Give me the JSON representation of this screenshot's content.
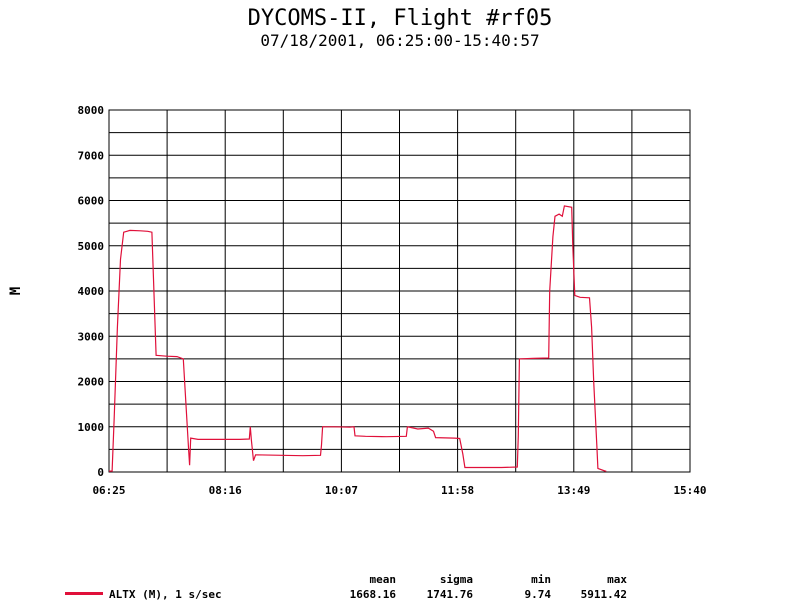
{
  "title": "DYCOMS-II, Flight #rf05",
  "subtitle": "07/18/2001, 06:25:00-15:40:57",
  "colors": {
    "series": "#e0103a",
    "grid": "#000000"
  },
  "chart_data": {
    "type": "line",
    "ylabel": "M",
    "xlabel": "",
    "ylim": [
      0,
      8000
    ],
    "y_ticks": [
      "0",
      "1000",
      "2000",
      "3000",
      "4000",
      "5000",
      "6000",
      "7000",
      "8000"
    ],
    "x_ticks": [
      "06:25",
      "08:16",
      "10:07",
      "11:58",
      "13:49",
      "15:40"
    ],
    "xlim": [
      "06:25",
      "15:40"
    ],
    "grid": true,
    "series": [
      {
        "name": "ALTX (M), 1 s/sec",
        "points": [
          [
            "06:25",
            20
          ],
          [
            "06:28",
            20
          ],
          [
            "06:30",
            1200
          ],
          [
            "06:33",
            3200
          ],
          [
            "06:36",
            4700
          ],
          [
            "06:39",
            5300
          ],
          [
            "06:45",
            5340
          ],
          [
            "06:55",
            5330
          ],
          [
            "07:02",
            5320
          ],
          [
            "07:06",
            5300
          ],
          [
            "07:10",
            2580
          ],
          [
            "07:20",
            2560
          ],
          [
            "07:30",
            2550
          ],
          [
            "07:36",
            2500
          ],
          [
            "07:41",
            500
          ],
          [
            "07:42",
            150
          ],
          [
            "07:43",
            750
          ],
          [
            "07:50",
            720
          ],
          [
            "08:10",
            720
          ],
          [
            "08:30",
            720
          ],
          [
            "08:39",
            730
          ],
          [
            "08:40",
            1000
          ],
          [
            "08:41",
            700
          ],
          [
            "08:43",
            250
          ],
          [
            "08:45",
            380
          ],
          [
            "09:10",
            370
          ],
          [
            "09:30",
            360
          ],
          [
            "09:47",
            370
          ],
          [
            "09:48",
            600
          ],
          [
            "09:49",
            1000
          ],
          [
            "10:00",
            1000
          ],
          [
            "10:15",
            990
          ],
          [
            "10:19",
            1000
          ],
          [
            "10:20",
            800
          ],
          [
            "10:30",
            790
          ],
          [
            "10:50",
            780
          ],
          [
            "11:09",
            790
          ],
          [
            "11:10",
            1000
          ],
          [
            "11:20",
            950
          ],
          [
            "11:30",
            970
          ],
          [
            "11:35",
            900
          ],
          [
            "11:37",
            760
          ],
          [
            "11:55",
            750
          ],
          [
            "12:00",
            740
          ],
          [
            "12:03",
            400
          ],
          [
            "12:05",
            100
          ],
          [
            "12:20",
            100
          ],
          [
            "12:40",
            100
          ],
          [
            "12:55",
            110
          ],
          [
            "12:56",
            800
          ],
          [
            "12:57",
            2500
          ],
          [
            "13:10",
            2510
          ],
          [
            "13:25",
            2520
          ],
          [
            "13:26",
            4000
          ],
          [
            "13:29",
            5200
          ],
          [
            "13:31",
            5650
          ],
          [
            "13:35",
            5700
          ],
          [
            "13:38",
            5650
          ],
          [
            "13:40",
            5880
          ],
          [
            "13:47",
            5850
          ],
          [
            "13:48",
            5000
          ],
          [
            "13:50",
            3900
          ],
          [
            "13:55",
            3860
          ],
          [
            "14:04",
            3850
          ],
          [
            "14:06",
            3200
          ],
          [
            "14:08",
            2000
          ],
          [
            "14:11",
            600
          ],
          [
            "14:12",
            80
          ],
          [
            "14:19",
            20
          ],
          [
            "14:20",
            20
          ]
        ]
      }
    ]
  },
  "stats": {
    "headers": [
      "mean",
      "sigma",
      "min",
      "max"
    ],
    "values": [
      "1668.16",
      "1741.76",
      "9.74",
      "5911.42"
    ]
  }
}
